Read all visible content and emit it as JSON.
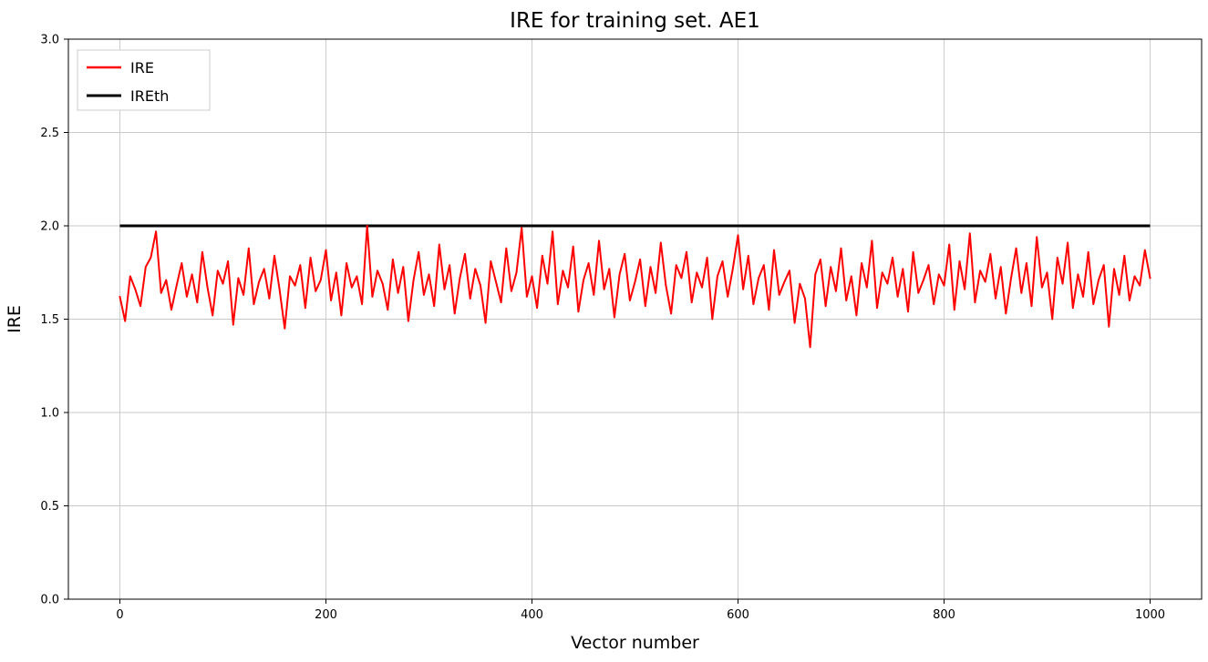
{
  "figure": {
    "background": "#ffffff",
    "grid_color": "#c8c8c8",
    "border_color": "#000000"
  },
  "chart_data": {
    "type": "line",
    "title": "IRE for training set. AE1",
    "xlabel": "Vector number",
    "ylabel": "IRE",
    "xlim": [
      -50,
      1050
    ],
    "ylim": [
      0,
      3
    ],
    "xticks": [
      0,
      200,
      400,
      600,
      800,
      1000
    ],
    "yticks": [
      0,
      0.5,
      1,
      1.5,
      2,
      2.5,
      3
    ],
    "grid": true,
    "legend_position": "upper-left",
    "legend_entries": [
      "IRE",
      "IREth"
    ],
    "series": [
      {
        "name": "IRE",
        "color": "#ff0000",
        "type": "line",
        "linewidth": 2,
        "x_start": 0,
        "x_step": 5,
        "values": [
          1.62,
          1.49,
          1.73,
          1.66,
          1.57,
          1.78,
          1.83,
          1.97,
          1.64,
          1.71,
          1.55,
          1.68,
          1.8,
          1.62,
          1.74,
          1.59,
          1.86,
          1.67,
          1.52,
          1.76,
          1.69,
          1.81,
          1.47,
          1.72,
          1.63,
          1.88,
          1.58,
          1.7,
          1.77,
          1.61,
          1.84,
          1.66,
          1.45,
          1.73,
          1.68,
          1.79,
          1.56,
          1.83,
          1.65,
          1.71,
          1.87,
          1.6,
          1.75,
          1.52,
          1.8,
          1.67,
          1.73,
          1.58,
          2.0,
          1.62,
          1.76,
          1.69,
          1.55,
          1.82,
          1.64,
          1.78,
          1.49,
          1.71,
          1.86,
          1.63,
          1.74,
          1.57,
          1.9,
          1.66,
          1.79,
          1.53,
          1.72,
          1.85,
          1.61,
          1.77,
          1.68,
          1.48,
          1.81,
          1.7,
          1.59,
          1.88,
          1.65,
          1.75,
          1.99,
          1.62,
          1.73,
          1.56,
          1.84,
          1.69,
          1.97,
          1.58,
          1.76,
          1.67,
          1.89,
          1.54,
          1.71,
          1.8,
          1.63,
          1.92,
          1.66,
          1.77,
          1.51,
          1.74,
          1.85,
          1.6,
          1.7,
          1.82,
          1.57,
          1.78,
          1.64,
          1.91,
          1.68,
          1.53,
          1.79,
          1.72,
          1.86,
          1.59,
          1.75,
          1.67,
          1.83,
          1.5,
          1.73,
          1.81,
          1.62,
          1.77,
          1.95,
          1.66,
          1.84,
          1.58,
          1.72,
          1.79,
          1.55,
          1.87,
          1.63,
          1.7,
          1.76,
          1.48,
          1.69,
          1.61,
          1.35,
          1.74,
          1.82,
          1.57,
          1.78,
          1.65,
          1.88,
          1.6,
          1.73,
          1.52,
          1.8,
          1.67,
          1.92,
          1.56,
          1.75,
          1.69,
          1.83,
          1.62,
          1.77,
          1.54,
          1.86,
          1.64,
          1.71,
          1.79,
          1.58,
          1.74,
          1.68,
          1.9,
          1.55,
          1.81,
          1.66,
          1.96,
          1.59,
          1.76,
          1.7,
          1.85,
          1.61,
          1.78,
          1.53,
          1.72,
          1.88,
          1.64,
          1.8,
          1.57,
          1.94,
          1.67,
          1.75,
          1.5,
          1.83,
          1.69,
          1.91,
          1.56,
          1.74,
          1.62,
          1.86,
          1.58,
          1.71,
          1.79,
          1.46,
          1.77,
          1.63,
          1.84,
          1.6,
          1.73,
          1.68,
          1.87,
          1.72
        ]
      },
      {
        "name": "IREth",
        "color": "#000000",
        "type": "threshold",
        "linewidth": 3,
        "y": 2.0,
        "x_range": [
          0,
          1000
        ]
      }
    ]
  }
}
